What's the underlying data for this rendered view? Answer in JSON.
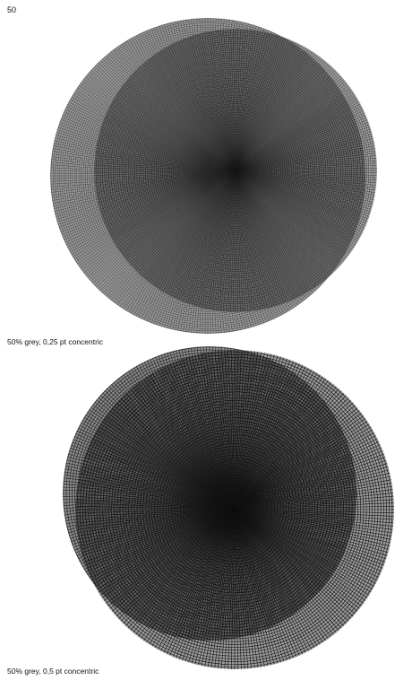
{
  "page": {
    "number": "50"
  },
  "figures": [
    {
      "caption": "50% grey, 0,25 pt concentric",
      "colors": {
        "ink": "#1a1a1a",
        "background": "#ffffff"
      },
      "pattern": "concentric",
      "line_weight_pt": 0.25
    },
    {
      "caption": "50% grey, 0,5 pt concentric",
      "colors": {
        "ink": "#111111",
        "background": "#ffffff"
      },
      "pattern": "concentric",
      "line_weight_pt": 0.5
    }
  ]
}
